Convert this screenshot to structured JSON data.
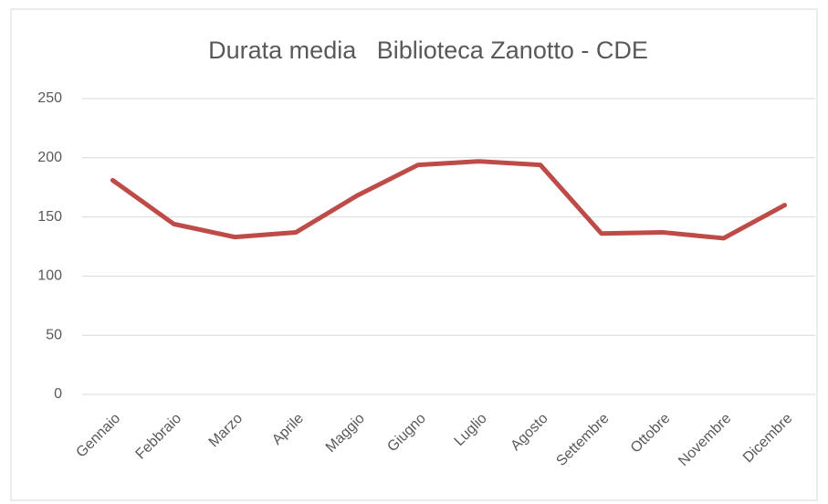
{
  "chart_data": {
    "type": "line",
    "title": "Durata media   Biblioteca Zanotto - CDE",
    "categories": [
      "Gennaio",
      "Febbraio",
      "Marzo",
      "Aprile",
      "Maggio",
      "Giugno",
      "Luglio",
      "Agosto",
      "Settembre",
      "Ottobre",
      "Novembre",
      "Dicembre"
    ],
    "series": [
      {
        "name": "Durata media",
        "color": "#be4b48",
        "values": [
          181,
          144,
          133,
          137,
          168,
          194,
          197,
          194,
          136,
          137,
          132,
          160
        ]
      }
    ],
    "ylim": [
      0,
      250
    ],
    "yticks": [
      0,
      50,
      100,
      150,
      200,
      250
    ],
    "grid": true
  }
}
